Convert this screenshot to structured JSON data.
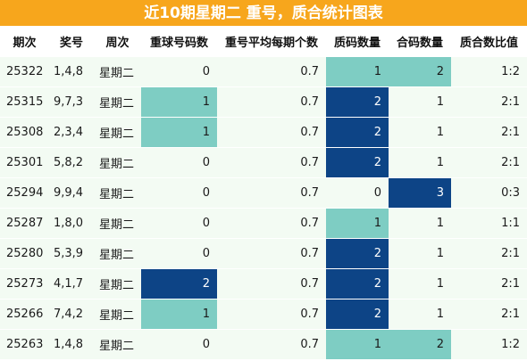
{
  "title": "近10期星期二 重号，质合统计图表",
  "columns": [
    "期次",
    "奖号",
    "周次",
    "重球号码数",
    "重号平均每期个数",
    "质码数量",
    "合码数量",
    "质合数比值"
  ],
  "colors": {
    "title_bg": "#f7a61c",
    "cell_bg": "#f3fbf3",
    "level1": "#7ecdc3",
    "level2": "#0d4486"
  },
  "rows": [
    {
      "period": "25322",
      "prize": "1,4,8",
      "week": "星期二",
      "repeat": "0",
      "avg": "0.7",
      "prime": "1",
      "composite": "2",
      "ratio": "1:2"
    },
    {
      "period": "25315",
      "prize": "9,7,3",
      "week": "星期二",
      "repeat": "1",
      "avg": "0.7",
      "prime": "2",
      "composite": "1",
      "ratio": "2:1"
    },
    {
      "period": "25308",
      "prize": "2,3,4",
      "week": "星期二",
      "repeat": "1",
      "avg": "0.7",
      "prime": "2",
      "composite": "1",
      "ratio": "2:1"
    },
    {
      "period": "25301",
      "prize": "5,8,2",
      "week": "星期二",
      "repeat": "0",
      "avg": "0.7",
      "prime": "2",
      "composite": "1",
      "ratio": "2:1"
    },
    {
      "period": "25294",
      "prize": "9,9,4",
      "week": "星期二",
      "repeat": "0",
      "avg": "0.7",
      "prime": "0",
      "composite": "3",
      "ratio": "0:3"
    },
    {
      "period": "25287",
      "prize": "1,8,0",
      "week": "星期二",
      "repeat": "0",
      "avg": "0.7",
      "prime": "1",
      "composite": "1",
      "ratio": "1:1"
    },
    {
      "period": "25280",
      "prize": "5,3,9",
      "week": "星期二",
      "repeat": "0",
      "avg": "0.7",
      "prime": "2",
      "composite": "1",
      "ratio": "2:1"
    },
    {
      "period": "25273",
      "prize": "4,1,7",
      "week": "星期二",
      "repeat": "2",
      "avg": "0.7",
      "prime": "2",
      "composite": "1",
      "ratio": "2:1"
    },
    {
      "period": "25266",
      "prize": "7,4,2",
      "week": "星期二",
      "repeat": "1",
      "avg": "0.7",
      "prime": "2",
      "composite": "1",
      "ratio": "2:1"
    },
    {
      "period": "25263",
      "prize": "1,4,8",
      "week": "星期二",
      "repeat": "0",
      "avg": "0.7",
      "prime": "1",
      "composite": "2",
      "ratio": "1:2"
    }
  ]
}
